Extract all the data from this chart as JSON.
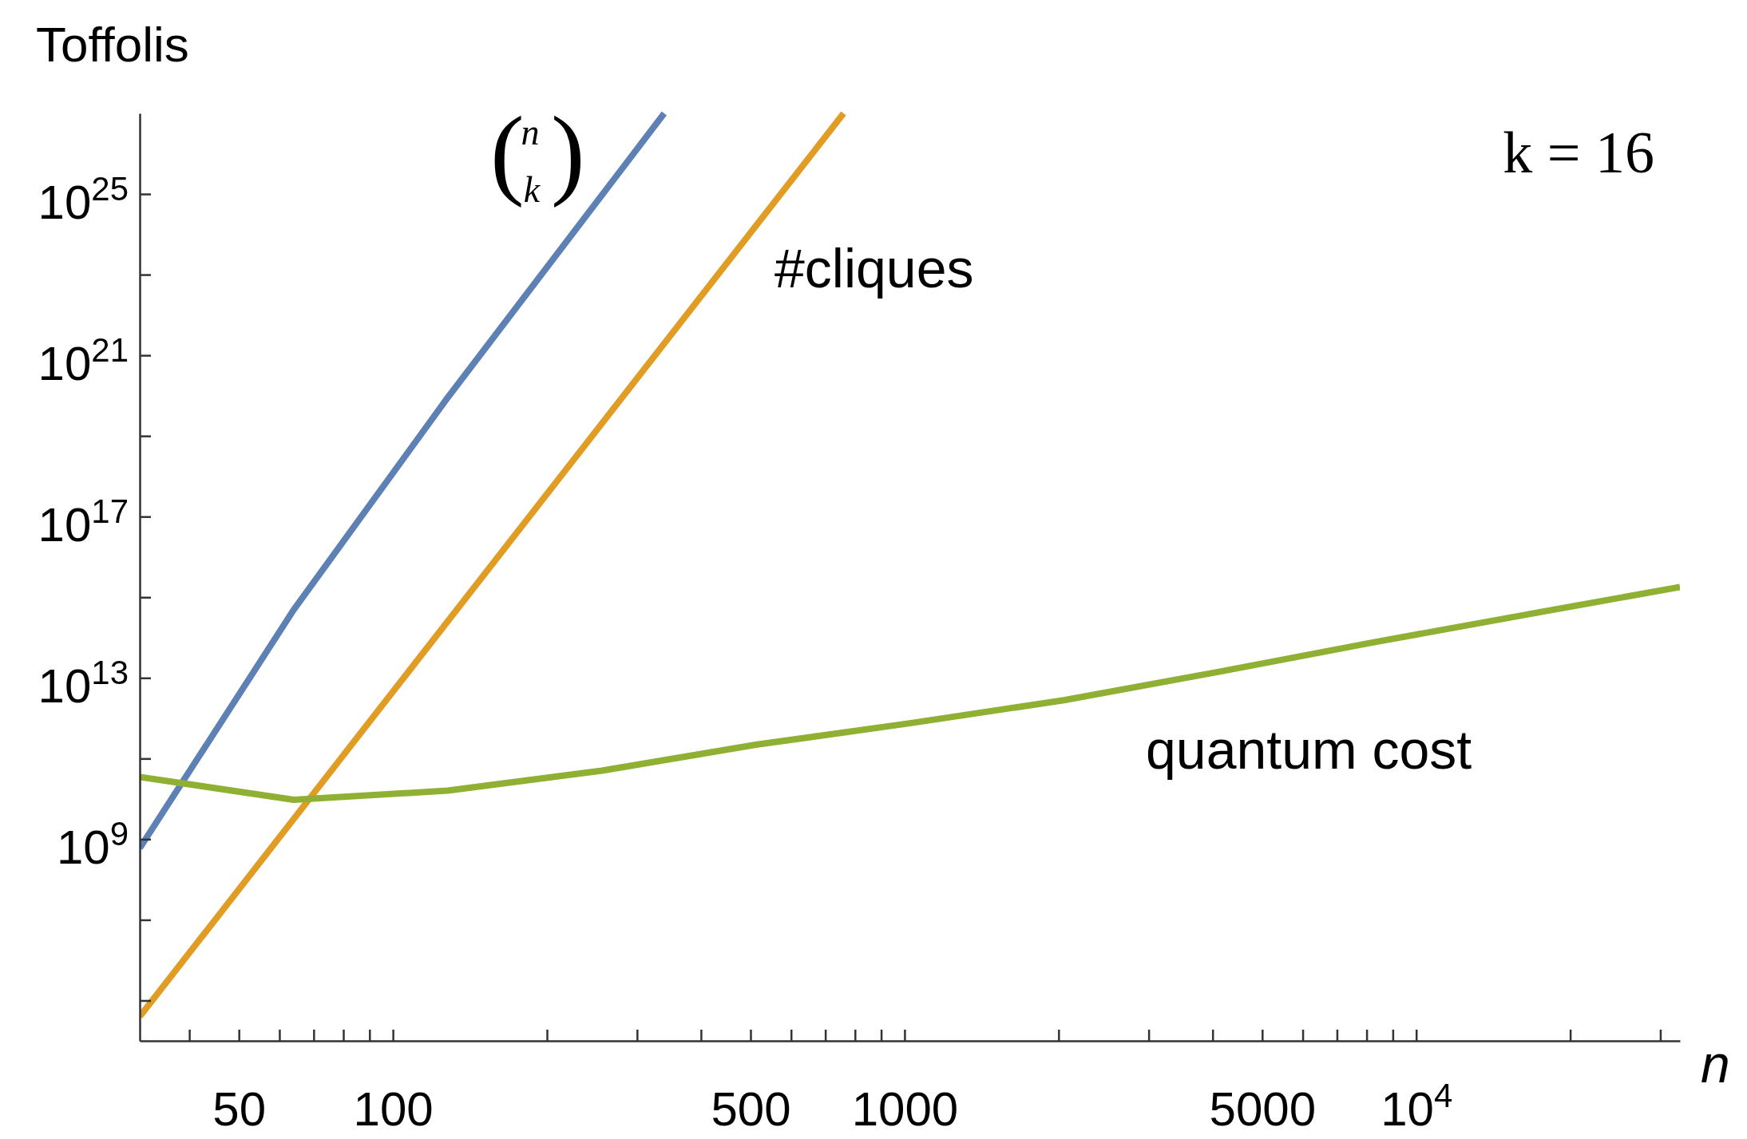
{
  "chart_data": {
    "type": "line",
    "ylabel": "Toffolis",
    "xlabel": "n",
    "log": "xy",
    "grid": false,
    "legend": false,
    "marker": "none",
    "line_style": "solid",
    "xlim": [
      32,
      32768
    ],
    "ylim": [
      10000.0,
      1e+27
    ],
    "xticks": [
      {
        "value": 40,
        "label": null
      },
      50,
      {
        "value": 60,
        "label": null
      },
      {
        "value": 70,
        "label": null
      },
      {
        "value": 80,
        "label": null
      },
      {
        "value": 90,
        "label": null
      },
      100,
      {
        "value": 200,
        "label": null
      },
      {
        "value": 300,
        "label": null
      },
      {
        "value": 400,
        "label": null
      },
      500,
      {
        "value": 600,
        "label": null
      },
      {
        "value": 700,
        "label": null
      },
      {
        "value": 800,
        "label": null
      },
      {
        "value": 900,
        "label": null
      },
      1000,
      {
        "value": 2000,
        "label": null
      },
      {
        "value": 3000,
        "label": null
      },
      {
        "value": 4000,
        "label": null
      },
      5000,
      {
        "value": 6000,
        "label": null
      },
      {
        "value": 7000,
        "label": null
      },
      {
        "value": 8000,
        "label": null
      },
      {
        "value": 9000,
        "label": null
      },
      {
        "value": 10000,
        "label": "10$^{4}$"
      },
      {
        "value": 20000,
        "label": null
      },
      {
        "value": 30000,
        "label": null
      }
    ],
    "yticks": [
      {
        "value": 100000.0,
        "label": null
      },
      {
        "value": 10000000.0,
        "label": null
      },
      {
        "value": 1000000000.0,
        "label": "10$^{9}$"
      },
      {
        "value": 100000000000.0,
        "label": null
      },
      {
        "value": 10000000000000.0,
        "label": "10$^{13}$"
      },
      {
        "value": 1000000000000000.0,
        "label": null
      },
      {
        "value": 1e+17,
        "label": "10$^{17}$"
      },
      {
        "value": 1e+19,
        "label": null
      },
      {
        "value": 1e+21,
        "label": "10$^{21}$"
      },
      {
        "value": 1e+23,
        "label": null
      },
      {
        "value": 1e+25,
        "label": "10$^{25}$"
      }
    ],
    "annotations": [
      "k = 16"
    ],
    "series": [
      {
        "name": "(n k)",
        "color": "#5e81b5",
        "x": [
          32,
          64,
          128,
          339
        ],
        "values": [
          600000000.0,
          490000000000000.0,
          9e+19,
          1e+27
        ]
      },
      {
        "name": "#cliques",
        "color": "#e19c24",
        "x": [
          32,
          760
        ],
        "values": [
          40000.0,
          1e+27
        ]
      },
      {
        "name": "quantum cost",
        "color": "#8fb032",
        "x": [
          32,
          64,
          128,
          256,
          512,
          1024,
          2048,
          4096,
          8192,
          16384,
          32768
        ],
        "values": [
          35000000000.0,
          9500000000.0,
          16000000000.0,
          50000000000.0,
          220000000000.0,
          750000000000.0,
          2800000000000.0,
          14000000000000.0,
          75000000000000.0,
          370000000000000.0,
          1800000000000000.0
        ]
      }
    ]
  }
}
